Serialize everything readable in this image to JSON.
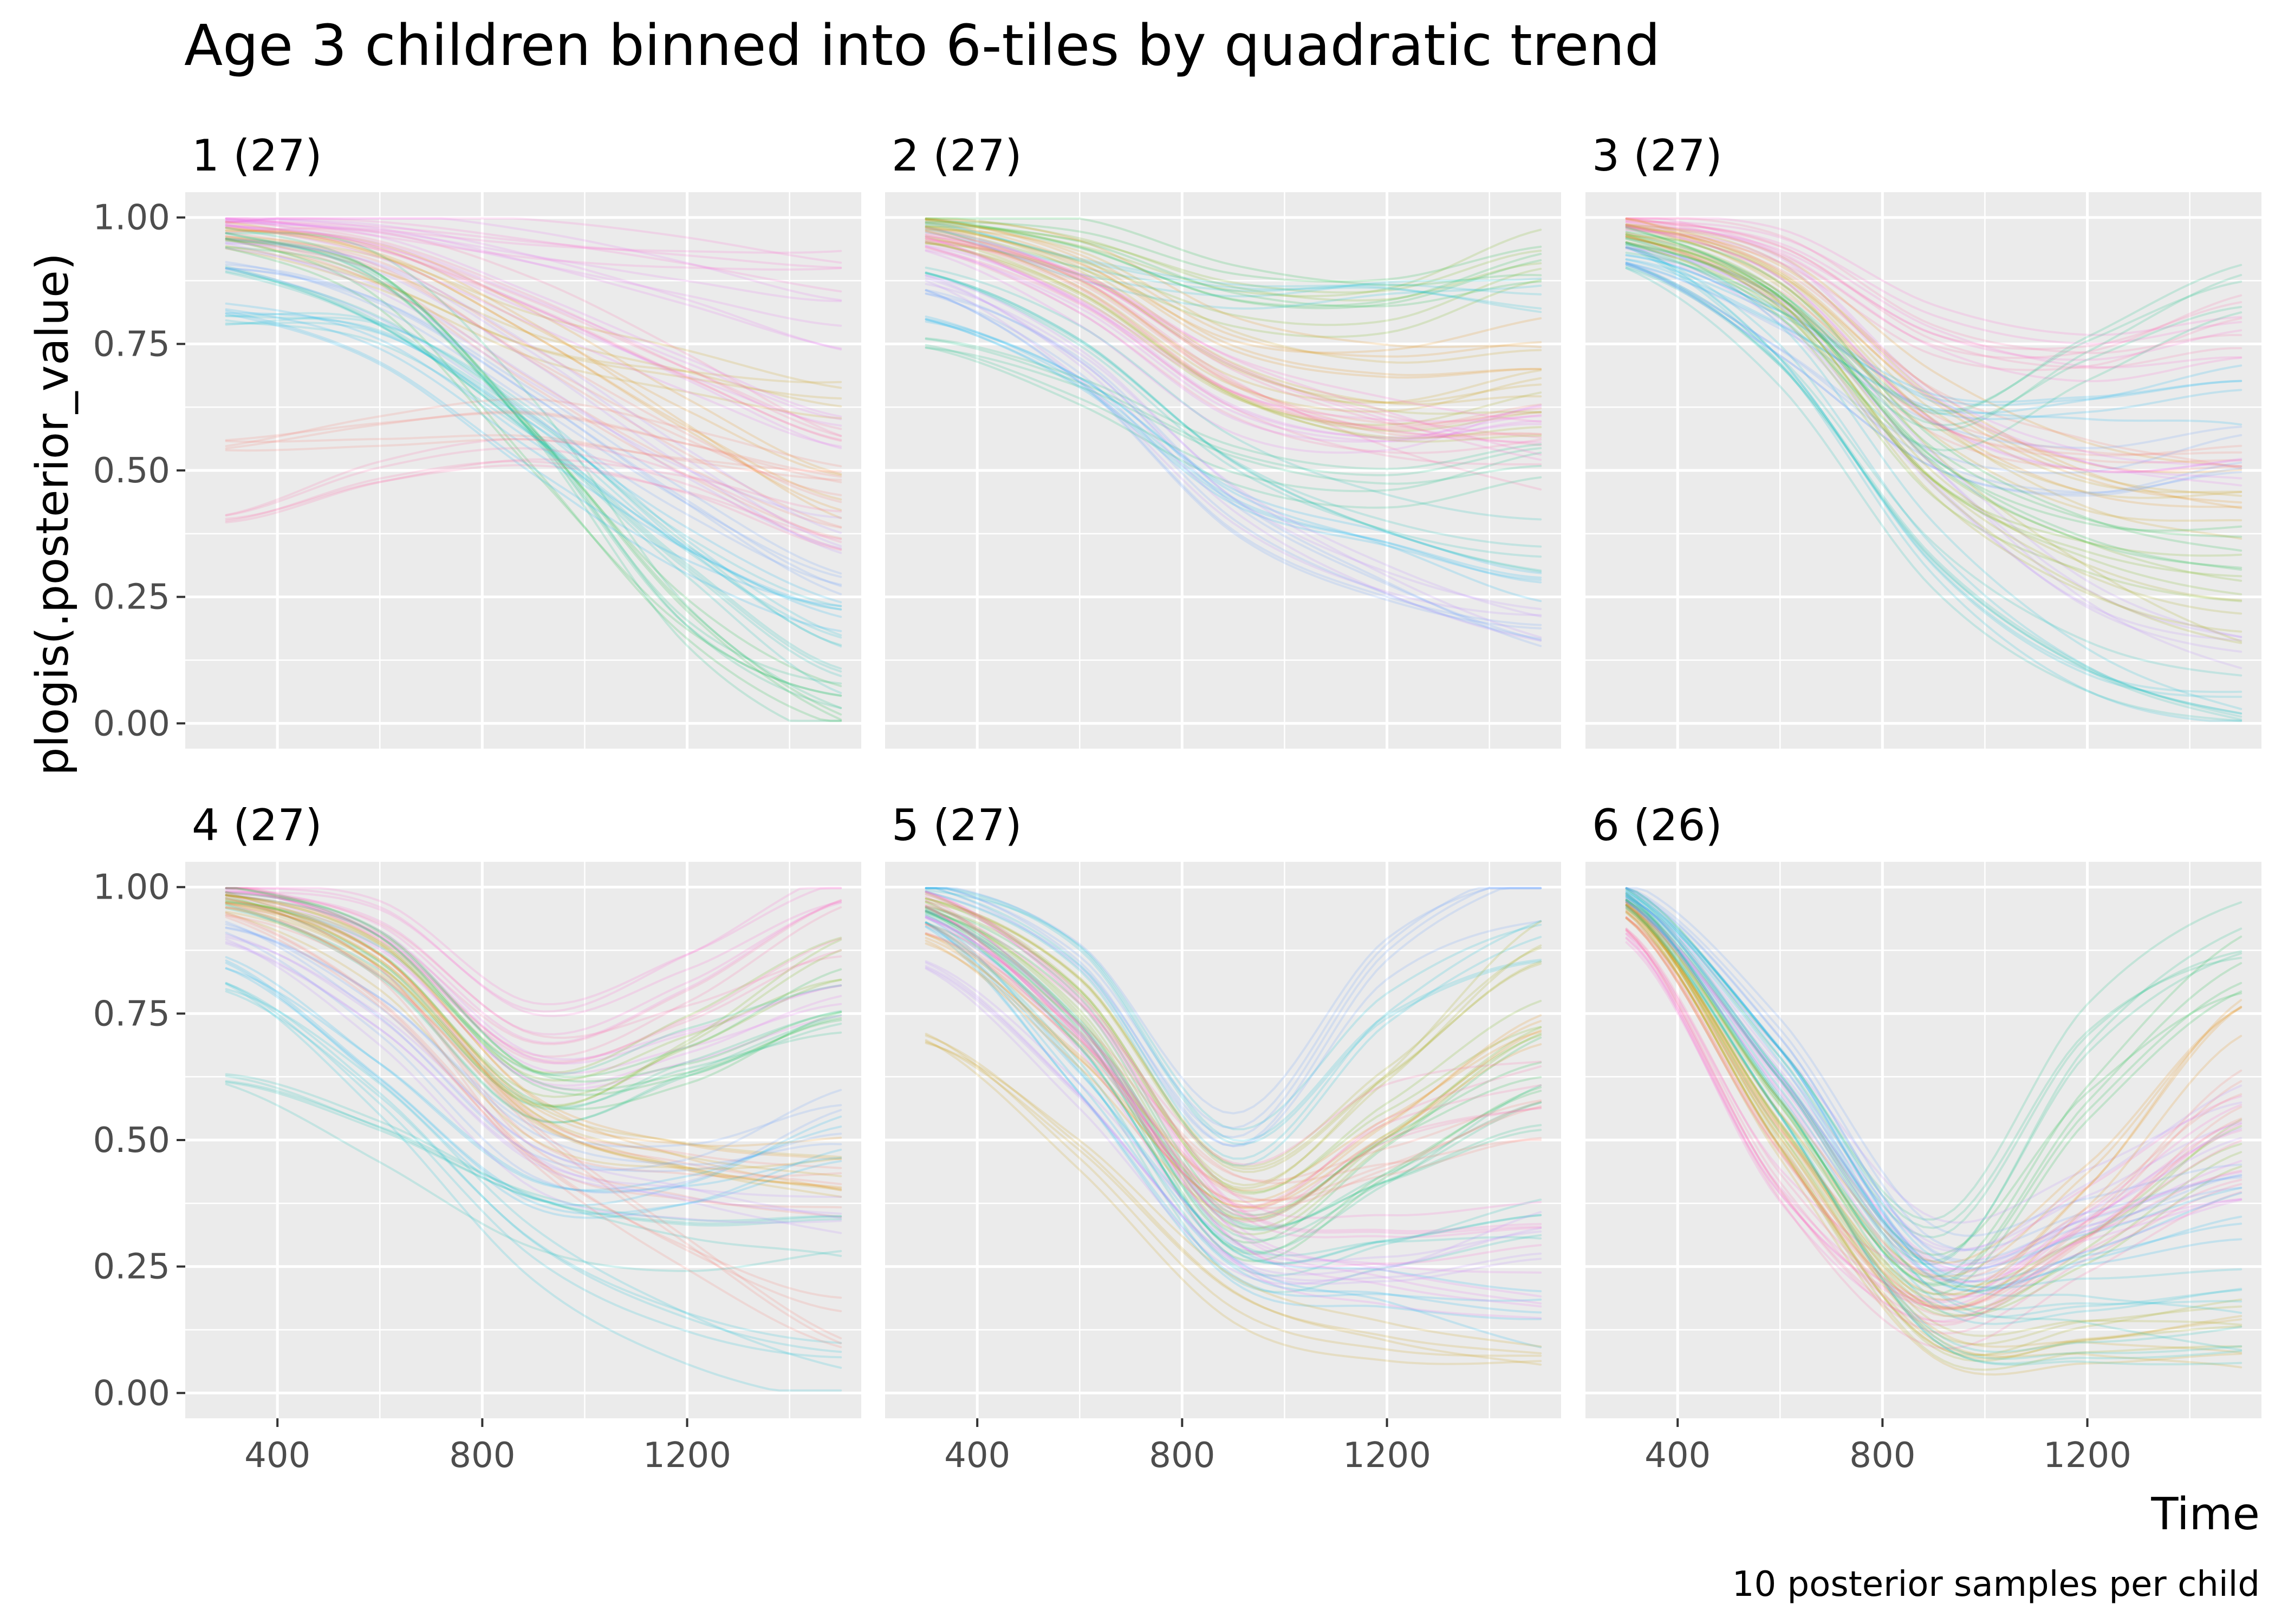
{
  "chart_data": {
    "type": "line",
    "title": "Age 3 children binned into 6-tiles by quadratic trend",
    "xlabel": "Time",
    "ylabel": "plogis(.posterior_value)",
    "caption": "10 posterior samples per child",
    "xlim": [
      220,
      1540
    ],
    "ylim": [
      -0.05,
      1.05
    ],
    "x_ticks": [
      400,
      800,
      1200
    ],
    "x_tick_labels": [
      "400",
      "800",
      "1200"
    ],
    "y_ticks": [
      0,
      0.25,
      0.5,
      0.75,
      1.0
    ],
    "y_tick_labels": [
      "0.00",
      "0.25",
      "0.50",
      "0.75",
      "1.00"
    ],
    "x_range": [
      300,
      1500
    ],
    "grid": true,
    "legend": "none",
    "facet_rows": 2,
    "facet_cols": 3,
    "palette": [
      "#F8766D",
      "#E58700",
      "#C99800",
      "#A3A500",
      "#6BB100",
      "#00BA38",
      "#00BF7D",
      "#00C0AF",
      "#00BCD8",
      "#00B0F6",
      "#619CFF",
      "#B983FF",
      "#E76BF3",
      "#FD61D1",
      "#FF67A4"
    ],
    "panels": [
      {
        "label": "1 (27)",
        "series": [
          {
            "color": "#FD61D1",
            "y": [
              1.0,
              0.99,
              0.96,
              0.93,
              0.9
            ]
          },
          {
            "color": "#E76BF3",
            "y": [
              1.0,
              0.98,
              0.92,
              0.85,
              0.78
            ]
          },
          {
            "color": "#FF67A4",
            "y": [
              0.98,
              0.95,
              0.85,
              0.72,
              0.6
            ]
          },
          {
            "color": "#F8766D",
            "y": [
              0.96,
              0.9,
              0.72,
              0.55,
              0.42
            ]
          },
          {
            "color": "#E58700",
            "y": [
              0.98,
              0.93,
              0.78,
              0.6,
              0.45
            ]
          },
          {
            "color": "#C99800",
            "y": [
              0.95,
              0.88,
              0.75,
              0.68,
              0.62
            ]
          },
          {
            "color": "#00BF7D",
            "y": [
              0.97,
              0.9,
              0.6,
              0.2,
              0.02
            ]
          },
          {
            "color": "#00BA38",
            "y": [
              0.95,
              0.86,
              0.55,
              0.22,
              0.05
            ]
          },
          {
            "color": "#00C0AF",
            "y": [
              0.9,
              0.82,
              0.62,
              0.35,
              0.12
            ]
          },
          {
            "color": "#00BCD8",
            "y": [
              0.8,
              0.78,
              0.6,
              0.35,
              0.18
            ]
          },
          {
            "color": "#00B0F6",
            "y": [
              0.82,
              0.75,
              0.55,
              0.35,
              0.22
            ]
          },
          {
            "color": "#619CFF",
            "y": [
              0.9,
              0.8,
              0.6,
              0.4,
              0.25
            ]
          },
          {
            "color": "#B983FF",
            "y": [
              0.95,
              0.88,
              0.7,
              0.5,
              0.35
            ]
          },
          {
            "color": "#FF67A4",
            "y": [
              0.4,
              0.5,
              0.55,
              0.5,
              0.4
            ]
          },
          {
            "color": "#F8766D",
            "y": [
              0.55,
              0.58,
              0.6,
              0.55,
              0.5
            ]
          },
          {
            "color": "#E76BF3",
            "y": [
              0.99,
              0.96,
              0.85,
              0.72,
              0.6
            ]
          }
        ]
      },
      {
        "label": "2 (27)",
        "series": [
          {
            "color": "#00BA38",
            "y": [
              1.0,
              0.96,
              0.86,
              0.84,
              0.9
            ]
          },
          {
            "color": "#6BB100",
            "y": [
              0.99,
              0.93,
              0.83,
              0.82,
              0.92
            ]
          },
          {
            "color": "#00BCD8",
            "y": [
              0.98,
              0.9,
              0.85,
              0.86,
              0.84
            ]
          },
          {
            "color": "#E58700",
            "y": [
              0.99,
              0.92,
              0.76,
              0.72,
              0.75
            ]
          },
          {
            "color": "#C99800",
            "y": [
              0.98,
              0.9,
              0.72,
              0.66,
              0.7
            ]
          },
          {
            "color": "#F8766D",
            "y": [
              0.97,
              0.88,
              0.68,
              0.6,
              0.62
            ]
          },
          {
            "color": "#FF67A4",
            "y": [
              0.95,
              0.85,
              0.65,
              0.55,
              0.52
            ]
          },
          {
            "color": "#E76BF3",
            "y": [
              0.94,
              0.82,
              0.62,
              0.58,
              0.65
            ]
          },
          {
            "color": "#00C0AF",
            "y": [
              0.9,
              0.78,
              0.55,
              0.42,
              0.35
            ]
          },
          {
            "color": "#00B0F6",
            "y": [
              0.8,
              0.68,
              0.45,
              0.35,
              0.25
            ]
          },
          {
            "color": "#619CFF",
            "y": [
              0.85,
              0.7,
              0.42,
              0.28,
              0.2
            ]
          },
          {
            "color": "#B983FF",
            "y": [
              0.88,
              0.72,
              0.45,
              0.3,
              0.22
            ]
          },
          {
            "color": "#00BF7D",
            "y": [
              0.75,
              0.65,
              0.5,
              0.45,
              0.5
            ]
          },
          {
            "color": "#A3A500",
            "y": [
              0.96,
              0.86,
              0.66,
              0.58,
              0.6
            ]
          },
          {
            "color": "#FD61D1",
            "y": [
              0.97,
              0.87,
              0.7,
              0.62,
              0.58
            ]
          }
        ]
      },
      {
        "label": "3 (27)",
        "series": [
          {
            "color": "#FD61D1",
            "y": [
              1.0,
              0.96,
              0.8,
              0.74,
              0.78
            ]
          },
          {
            "color": "#FF67A4",
            "y": [
              0.99,
              0.93,
              0.75,
              0.72,
              0.8
            ]
          },
          {
            "color": "#E58700",
            "y": [
              0.99,
              0.9,
              0.65,
              0.5,
              0.45
            ]
          },
          {
            "color": "#C99800",
            "y": [
              0.98,
              0.88,
              0.6,
              0.45,
              0.42
            ]
          },
          {
            "color": "#F8766D",
            "y": [
              0.97,
              0.86,
              0.62,
              0.55,
              0.55
            ]
          },
          {
            "color": "#00BCD8",
            "y": [
              0.95,
              0.75,
              0.35,
              0.12,
              0.04
            ]
          },
          {
            "color": "#00C0AF",
            "y": [
              0.9,
              0.7,
              0.32,
              0.12,
              0.05
            ]
          },
          {
            "color": "#00B0F6",
            "y": [
              0.92,
              0.78,
              0.6,
              0.6,
              0.65
            ]
          },
          {
            "color": "#619CFF",
            "y": [
              0.9,
              0.75,
              0.55,
              0.5,
              0.55
            ]
          },
          {
            "color": "#B983FF",
            "y": [
              0.95,
              0.82,
              0.5,
              0.25,
              0.15
            ]
          },
          {
            "color": "#6BB100",
            "y": [
              0.96,
              0.84,
              0.5,
              0.35,
              0.28
            ]
          },
          {
            "color": "#00BA38",
            "y": [
              0.97,
              0.86,
              0.55,
              0.4,
              0.35
            ]
          },
          {
            "color": "#00BF7D",
            "y": [
              0.94,
              0.82,
              0.58,
              0.72,
              0.85
            ]
          },
          {
            "color": "#A3A500",
            "y": [
              0.96,
              0.85,
              0.5,
              0.3,
              0.2
            ]
          },
          {
            "color": "#E76BF3",
            "y": [
              0.98,
              0.9,
              0.62,
              0.5,
              0.48
            ]
          }
        ]
      },
      {
        "label": "4 (27)",
        "series": [
          {
            "color": "#FD61D1",
            "y": [
              1.0,
              0.94,
              0.72,
              0.82,
              0.98
            ]
          },
          {
            "color": "#FF67A4",
            "y": [
              1.0,
              0.92,
              0.7,
              0.78,
              0.92
            ]
          },
          {
            "color": "#E76BF3",
            "y": [
              0.99,
              0.9,
              0.65,
              0.7,
              0.8
            ]
          },
          {
            "color": "#00BA38",
            "y": [
              0.99,
              0.9,
              0.62,
              0.65,
              0.78
            ]
          },
          {
            "color": "#6BB100",
            "y": [
              0.98,
              0.87,
              0.6,
              0.7,
              0.85
            ]
          },
          {
            "color": "#00BF7D",
            "y": [
              0.97,
              0.85,
              0.58,
              0.66,
              0.75
            ]
          },
          {
            "color": "#E58700",
            "y": [
              0.98,
              0.86,
              0.55,
              0.46,
              0.45
            ]
          },
          {
            "color": "#F8766D",
            "y": [
              0.97,
              0.84,
              0.5,
              0.42,
              0.4
            ]
          },
          {
            "color": "#C99800",
            "y": [
              0.96,
              0.82,
              0.52,
              0.44,
              0.42
            ]
          },
          {
            "color": "#619CFF",
            "y": [
              0.92,
              0.75,
              0.48,
              0.45,
              0.55
            ]
          },
          {
            "color": "#00B0F6",
            "y": [
              0.85,
              0.65,
              0.42,
              0.42,
              0.5
            ]
          },
          {
            "color": "#00BCD8",
            "y": [
              0.8,
              0.58,
              0.28,
              0.12,
              0.04
            ]
          },
          {
            "color": "#00C0AF",
            "y": [
              0.62,
              0.5,
              0.35,
              0.3,
              0.32
            ]
          },
          {
            "color": "#B983FF",
            "y": [
              0.9,
              0.72,
              0.45,
              0.38,
              0.35
            ]
          },
          {
            "color": "#F8766D",
            "y": [
              0.95,
              0.8,
              0.5,
              0.3,
              0.15
            ]
          }
        ]
      },
      {
        "label": "5 (27)",
        "series": [
          {
            "color": "#619CFF",
            "y": [
              1.0,
              0.85,
              0.5,
              0.85,
              0.99
            ]
          },
          {
            "color": "#00BCD8",
            "y": [
              1.0,
              0.86,
              0.48,
              0.75,
              0.9
            ]
          },
          {
            "color": "#A3A500",
            "y": [
              0.98,
              0.8,
              0.42,
              0.62,
              0.88
            ]
          },
          {
            "color": "#6BB100",
            "y": [
              0.97,
              0.78,
              0.38,
              0.55,
              0.75
            ]
          },
          {
            "color": "#00BA38",
            "y": [
              0.96,
              0.75,
              0.32,
              0.48,
              0.65
            ]
          },
          {
            "color": "#00BF7D",
            "y": [
              0.95,
              0.7,
              0.3,
              0.4,
              0.55
            ]
          },
          {
            "color": "#00C0AF",
            "y": [
              0.94,
              0.68,
              0.28,
              0.3,
              0.35
            ]
          },
          {
            "color": "#00B0F6",
            "y": [
              0.93,
              0.62,
              0.26,
              0.2,
              0.15
            ]
          },
          {
            "color": "#E58700",
            "y": [
              0.9,
              0.65,
              0.35,
              0.5,
              0.7
            ]
          },
          {
            "color": "#F8766D",
            "y": [
              0.92,
              0.7,
              0.4,
              0.45,
              0.55
            ]
          },
          {
            "color": "#FD61D1",
            "y": [
              0.98,
              0.76,
              0.35,
              0.3,
              0.32
            ]
          },
          {
            "color": "#E76BF3",
            "y": [
              0.95,
              0.7,
              0.3,
              0.22,
              0.2
            ]
          },
          {
            "color": "#C99800",
            "y": [
              0.7,
              0.48,
              0.2,
              0.12,
              0.1
            ]
          },
          {
            "color": "#B983FF",
            "y": [
              0.85,
              0.6,
              0.28,
              0.25,
              0.3
            ]
          },
          {
            "color": "#FF67A4",
            "y": [
              0.97,
              0.74,
              0.4,
              0.55,
              0.6
            ]
          }
        ]
      },
      {
        "label": "6 (26)",
        "series": [
          {
            "color": "#00BF7D",
            "y": [
              0.99,
              0.65,
              0.3,
              0.72,
              0.92
            ]
          },
          {
            "color": "#00BA38",
            "y": [
              0.98,
              0.6,
              0.25,
              0.6,
              0.85
            ]
          },
          {
            "color": "#6BB100",
            "y": [
              0.97,
              0.55,
              0.2,
              0.3,
              0.5
            ]
          },
          {
            "color": "#A3A500",
            "y": [
              0.96,
              0.5,
              0.1,
              0.12,
              0.15
            ]
          },
          {
            "color": "#C99800",
            "y": [
              0.95,
              0.48,
              0.09,
              0.08,
              0.1
            ]
          },
          {
            "color": "#FF67A4",
            "y": [
              0.92,
              0.42,
              0.15,
              0.3,
              0.45
            ]
          },
          {
            "color": "#FD61D1",
            "y": [
              0.9,
              0.4,
              0.18,
              0.35,
              0.55
            ]
          },
          {
            "color": "#E76BF3",
            "y": [
              0.97,
              0.62,
              0.25,
              0.32,
              0.4
            ]
          },
          {
            "color": "#B983FF",
            "y": [
              0.98,
              0.65,
              0.3,
              0.4,
              0.55
            ]
          },
          {
            "color": "#619CFF",
            "y": [
              1.0,
              0.7,
              0.28,
              0.35,
              0.45
            ]
          },
          {
            "color": "#00B0F6",
            "y": [
              0.99,
              0.68,
              0.25,
              0.28,
              0.35
            ]
          },
          {
            "color": "#00BCD8",
            "y": [
              0.98,
              0.6,
              0.2,
              0.18,
              0.2
            ]
          },
          {
            "color": "#00C0AF",
            "y": [
              0.97,
              0.58,
              0.15,
              0.1,
              0.08
            ]
          },
          {
            "color": "#E58700",
            "y": [
              0.96,
              0.55,
              0.22,
              0.42,
              0.75
            ]
          },
          {
            "color": "#F8766D",
            "y": [
              0.94,
              0.5,
              0.2,
              0.35,
              0.6
            ]
          }
        ]
      }
    ]
  }
}
